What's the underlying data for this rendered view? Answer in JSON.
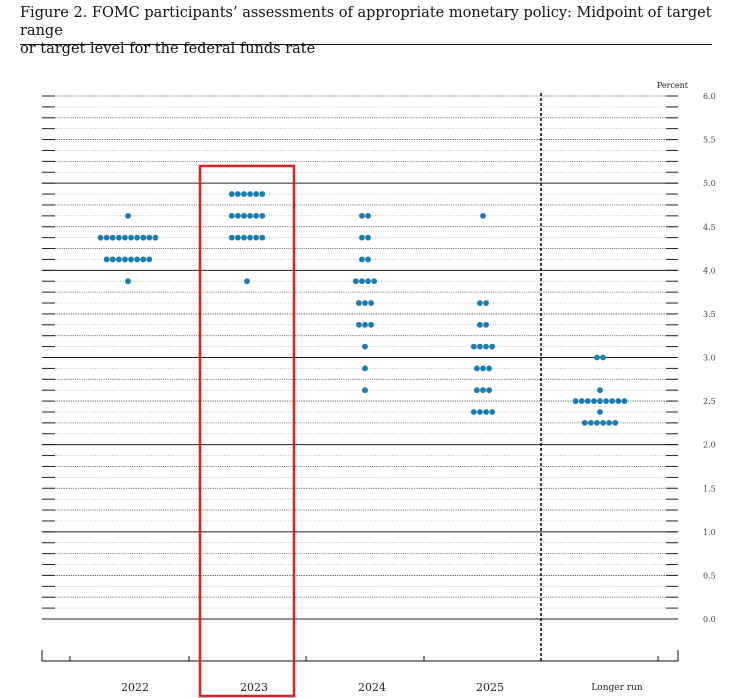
{
  "caption": {
    "line1": "Figure 2.  FOMC participants’ assessments of appropriate monetary policy: Midpoint of target range",
    "line2": "or target level for the federal funds rate"
  },
  "chart_data": {
    "type": "scatter",
    "subtype": "dot-plot",
    "unit_label": "Percent",
    "categories": [
      "2022",
      "2023",
      "2024",
      "2025",
      "Longer run"
    ],
    "ylim": [
      0,
      6
    ],
    "y_ticks": [
      "0.0",
      "0.5",
      "1.0",
      "1.5",
      "2.0",
      "2.5",
      "3.0",
      "3.5",
      "4.0",
      "4.5",
      "5.0",
      "5.5",
      "6.0"
    ],
    "grid": true,
    "dot_color": "#1a7db0",
    "highlight_color": "#e02020",
    "highlighted_category": "2023",
    "dots": [
      {
        "category": "2022",
        "y": 4.625,
        "count": 1
      },
      {
        "category": "2022",
        "y": 4.375,
        "count": 10
      },
      {
        "category": "2022",
        "y": 4.125,
        "count": 8
      },
      {
        "category": "2022",
        "y": 3.875,
        "count": 1
      },
      {
        "category": "2023",
        "y": 4.875,
        "count": 6
      },
      {
        "category": "2023",
        "y": 4.625,
        "count": 6
      },
      {
        "category": "2023",
        "y": 4.375,
        "count": 6
      },
      {
        "category": "2023",
        "y": 3.875,
        "count": 1
      },
      {
        "category": "2024",
        "y": 4.625,
        "count": 2
      },
      {
        "category": "2024",
        "y": 4.375,
        "count": 2
      },
      {
        "category": "2024",
        "y": 4.125,
        "count": 2
      },
      {
        "category": "2024",
        "y": 3.875,
        "count": 4
      },
      {
        "category": "2024",
        "y": 3.625,
        "count": 3
      },
      {
        "category": "2024",
        "y": 3.375,
        "count": 3
      },
      {
        "category": "2024",
        "y": 3.125,
        "count": 1
      },
      {
        "category": "2024",
        "y": 2.875,
        "count": 1
      },
      {
        "category": "2024",
        "y": 2.625,
        "count": 1
      },
      {
        "category": "2025",
        "y": 4.625,
        "count": 1
      },
      {
        "category": "2025",
        "y": 3.625,
        "count": 2
      },
      {
        "category": "2025",
        "y": 3.375,
        "count": 2
      },
      {
        "category": "2025",
        "y": 3.125,
        "count": 4
      },
      {
        "category": "2025",
        "y": 2.875,
        "count": 3
      },
      {
        "category": "2025",
        "y": 2.625,
        "count": 3
      },
      {
        "category": "2025",
        "y": 2.375,
        "count": 4
      },
      {
        "category": "Longer run",
        "y": 3.0,
        "count": 2
      },
      {
        "category": "Longer run",
        "y": 2.625,
        "count": 1
      },
      {
        "category": "Longer run",
        "y": 2.5,
        "count": 9
      },
      {
        "category": "Longer run",
        "y": 2.375,
        "count": 1
      },
      {
        "category": "Longer run",
        "y": 2.25,
        "count": 6
      }
    ]
  }
}
